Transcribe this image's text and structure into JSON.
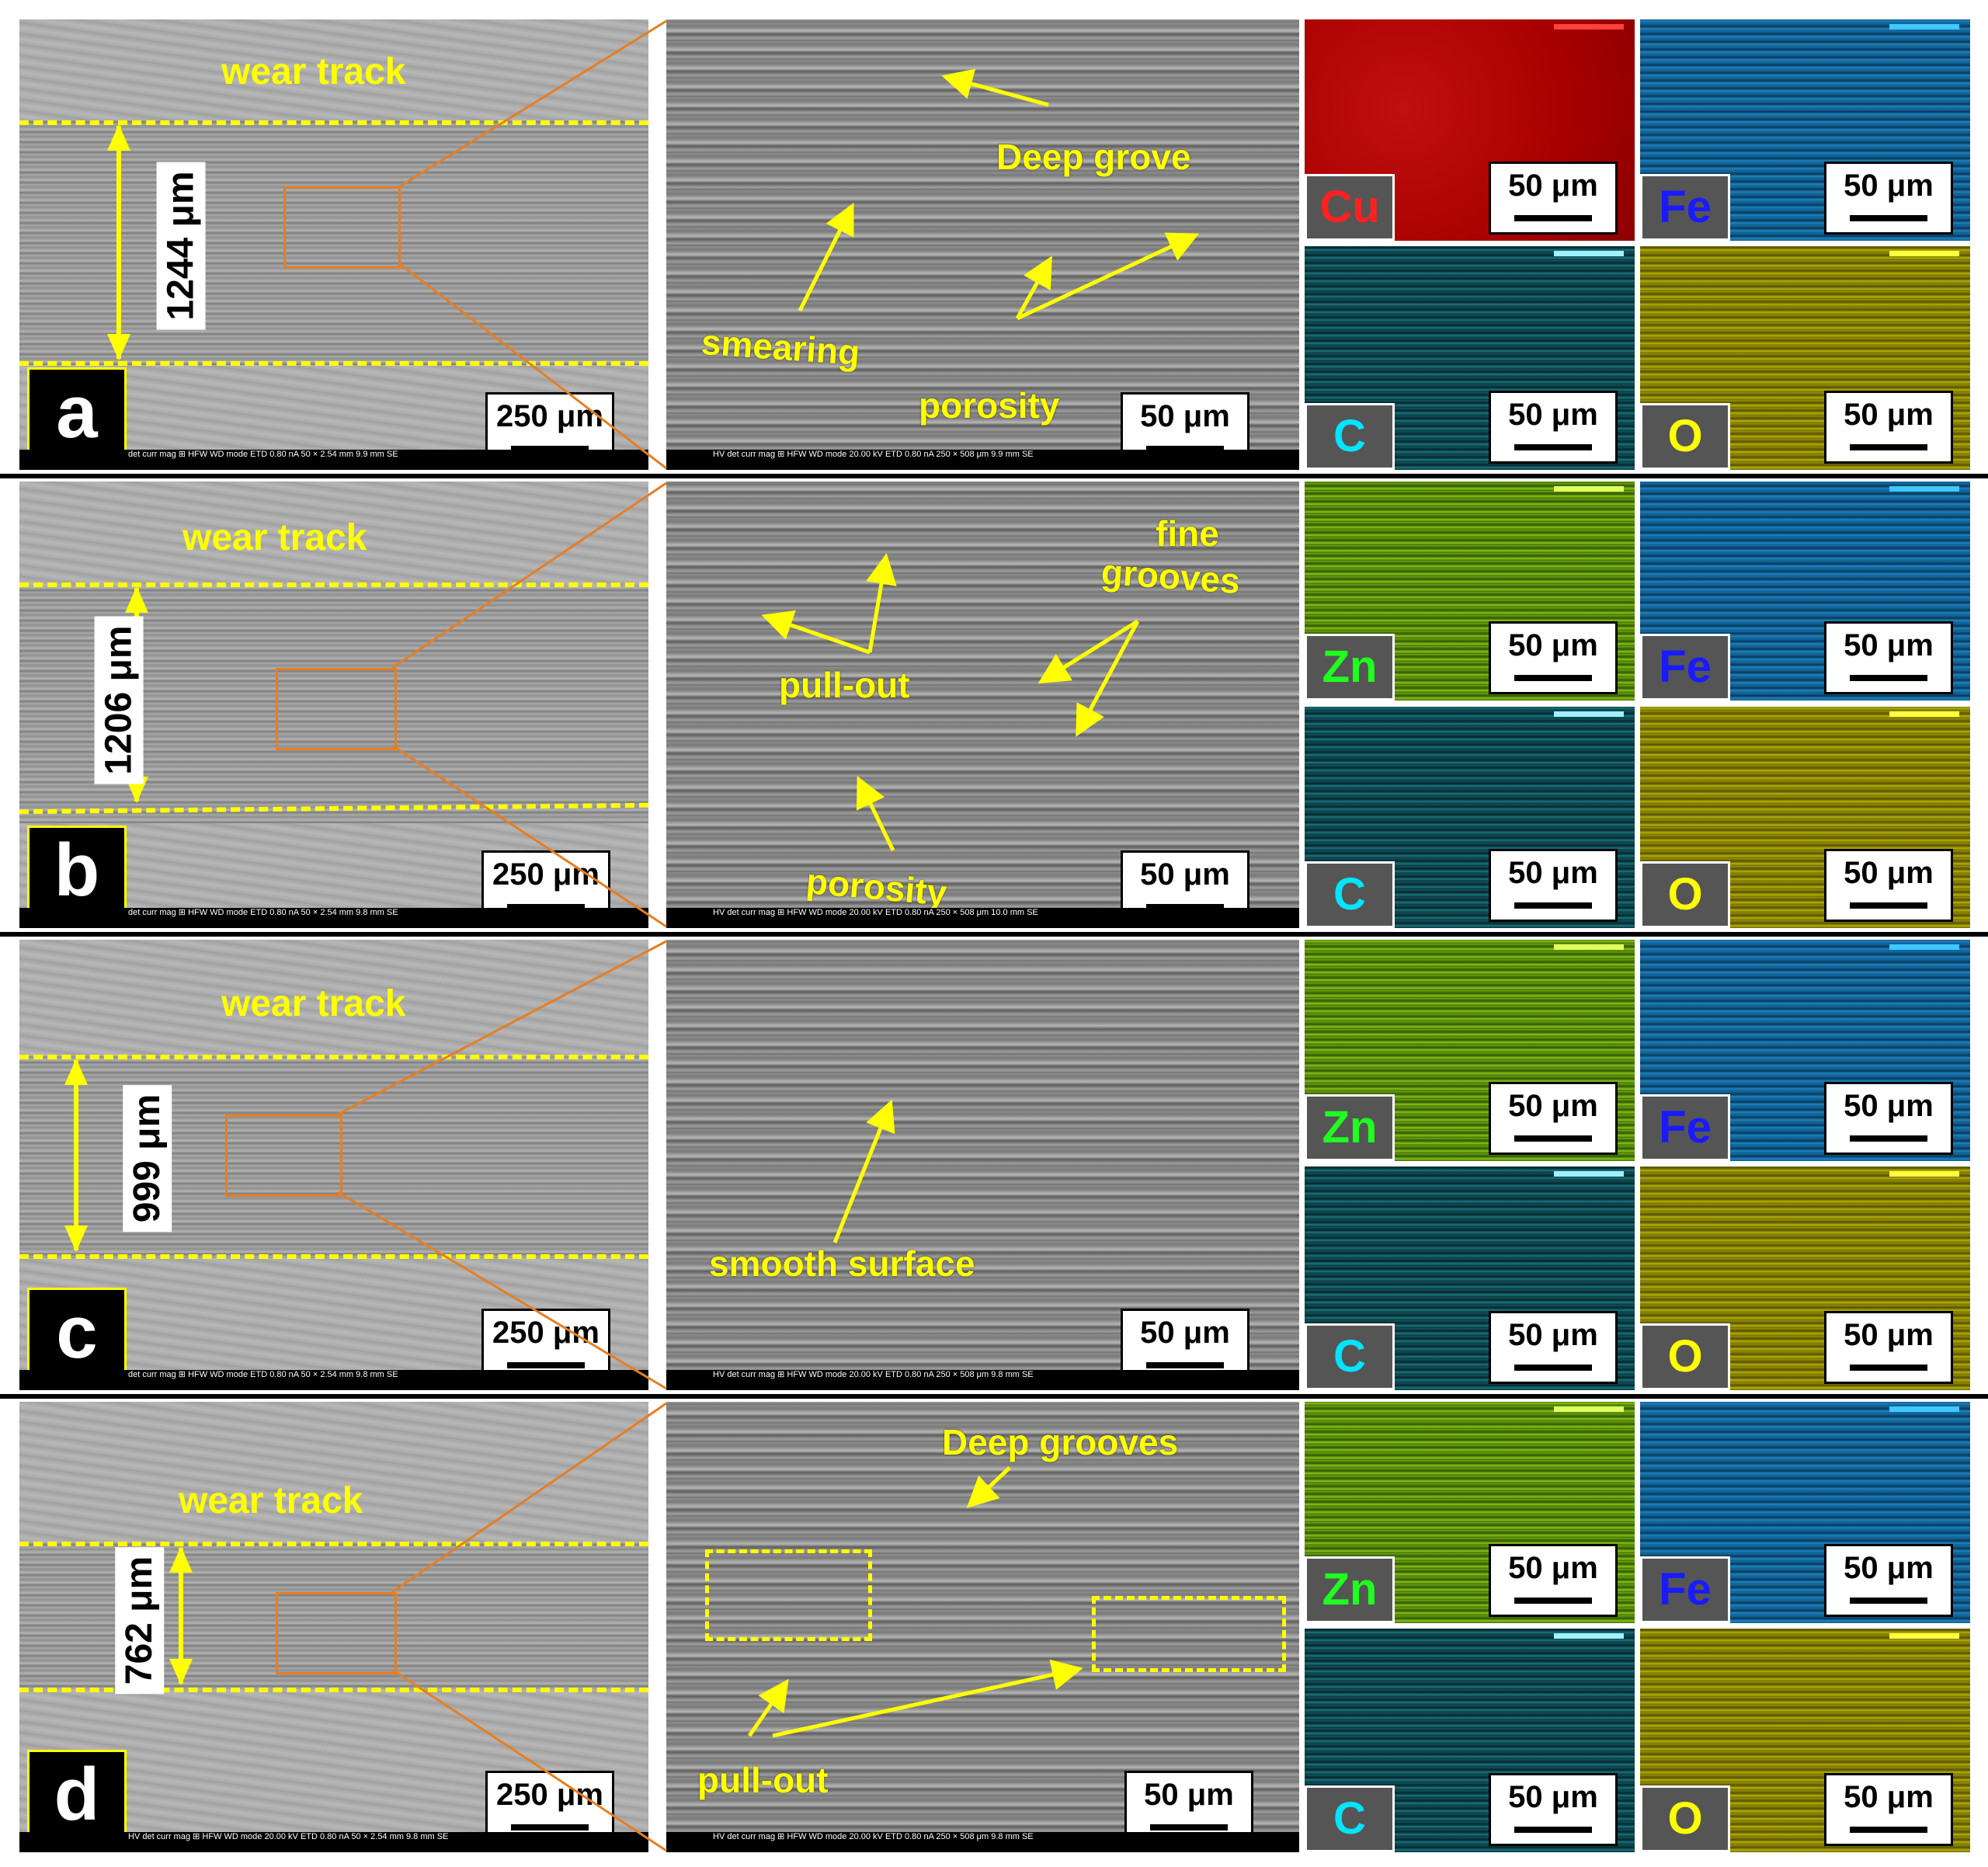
{
  "rows": [
    {
      "letter": "a",
      "wear_track": "wear track",
      "width_label": "1244 μm",
      "low_scale": "250 μm",
      "high_scale": "50 μm",
      "low_info": "det  curr  mag ⊞  HFW  WD  mode   ETD  0.80 nA  50 ×  2.54 mm  9.9 mm  SE",
      "high_info": "HV  det  curr  mag ⊞  HFW  WD  mode   20.00 kV  ETD  0.80 nA  250 ×  508 μm  9.9 mm  SE",
      "annotations": [
        "Deep grove",
        "smearing",
        "porosity"
      ],
      "maps": [
        {
          "element": "Cu",
          "scale": "50 μm",
          "label_color": "#ff2020",
          "bar_color": "#ff4040",
          "bar_ticks": "0   5"
        },
        {
          "element": "Fe",
          "scale": "50 μm",
          "label_color": "#1a1aff",
          "bar_color": "#40c8ff",
          "bar_ticks": ""
        },
        {
          "element": "C",
          "scale": "50 μm",
          "label_color": "#00e5ff",
          "bar_color": "#a0f0ff",
          "bar_ticks": ""
        },
        {
          "element": "O",
          "scale": "50 μm",
          "label_color": "#ffff00",
          "bar_color": "#ffff40",
          "bar_ticks": ""
        }
      ]
    },
    {
      "letter": "b",
      "wear_track": "wear track",
      "width_label": "1206 μm",
      "low_scale": "250 μm",
      "high_scale": "50 μm",
      "low_info": "det  curr  mag ⊞  HFW  WD  mode   ETD  0.80 nA  50 ×  2.54 mm  9.8 mm  SE",
      "high_info": "HV  det  curr  mag ⊞  HFW  WD  mode   20.00 kV  ETD  0.80 nA  250 ×  508 μm  10.0 mm  SE",
      "annotations": [
        "fine",
        "grooves",
        "pull-out",
        "porosity"
      ],
      "maps": [
        {
          "element": "Zn",
          "scale": "50 μm",
          "label_color": "#20ff20",
          "bar_color": "#e0ff60",
          "bar_ticks": ""
        },
        {
          "element": "Fe",
          "scale": "50 μm",
          "label_color": "#1a1aff",
          "bar_color": "#40c8ff",
          "bar_ticks": ""
        },
        {
          "element": "C",
          "scale": "50 μm",
          "label_color": "#00e5ff",
          "bar_color": "#a0f0ff",
          "bar_ticks": ""
        },
        {
          "element": "O",
          "scale": "50 μm",
          "label_color": "#ffff00",
          "bar_color": "#ffff40",
          "bar_ticks": ""
        }
      ]
    },
    {
      "letter": "c",
      "wear_track": "wear track",
      "width_label": "999 μm",
      "low_scale": "250 μm",
      "high_scale": "50 μm",
      "low_info": "det  curr  mag ⊞  HFW  WD  mode   ETD  0.80 nA  50 ×  2.54 mm  9.8 mm  SE",
      "high_info": "HV  det  curr  mag ⊞  HFW  WD  mode   20.00 kV  ETD  0.80 nA  250 ×  508 μm  9.8 mm  SE",
      "annotations": [
        "smooth surface"
      ],
      "maps": [
        {
          "element": "Zn",
          "scale": "50 μm",
          "label_color": "#20ff20",
          "bar_color": "#e0ff60",
          "bar_ticks": ""
        },
        {
          "element": "Fe",
          "scale": "50 μm",
          "label_color": "#1a1aff",
          "bar_color": "#40c8ff",
          "bar_ticks": ""
        },
        {
          "element": "C",
          "scale": "50 μm",
          "label_color": "#00e5ff",
          "bar_color": "#a0f0ff",
          "bar_ticks": ""
        },
        {
          "element": "O",
          "scale": "50 μm",
          "label_color": "#ffff00",
          "bar_color": "#ffff40",
          "bar_ticks": ""
        }
      ]
    },
    {
      "letter": "d",
      "wear_track": "wear track",
      "width_label": "762 μm",
      "low_scale": "250 μm",
      "high_scale": "50 μm",
      "low_info": "HV  det  curr  mag ⊞  HFW  WD  mode   20.00 kV  ETD  0.80 nA  50 ×  2.54 mm  9.8 mm  SE",
      "high_info": "HV  det  curr  mag ⊞  HFW  WD  mode   20.00 kV  ETD  0.80 nA  250 ×  508 μm  9.8 mm  SE",
      "annotations": [
        "Deep grooves",
        "pull-out"
      ],
      "maps": [
        {
          "element": "Zn",
          "scale": "50 μm",
          "label_color": "#20ff20",
          "bar_color": "#e0ff60",
          "bar_ticks": ""
        },
        {
          "element": "Fe",
          "scale": "50 μm",
          "label_color": "#1a1aff",
          "bar_color": "#40c8ff",
          "bar_ticks": ""
        },
        {
          "element": "C",
          "scale": "50 μm",
          "label_color": "#00e5ff",
          "bar_color": "#a0f0ff",
          "bar_ticks": ""
        },
        {
          "element": "O",
          "scale": "50 μm",
          "label_color": "#ffff00",
          "bar_color": "#ffff40",
          "bar_ticks": ""
        }
      ]
    }
  ],
  "colors": {
    "annotation": "#ffff00",
    "zoom_box": "#e67e22",
    "panel_letter_border": "#ffff00"
  }
}
